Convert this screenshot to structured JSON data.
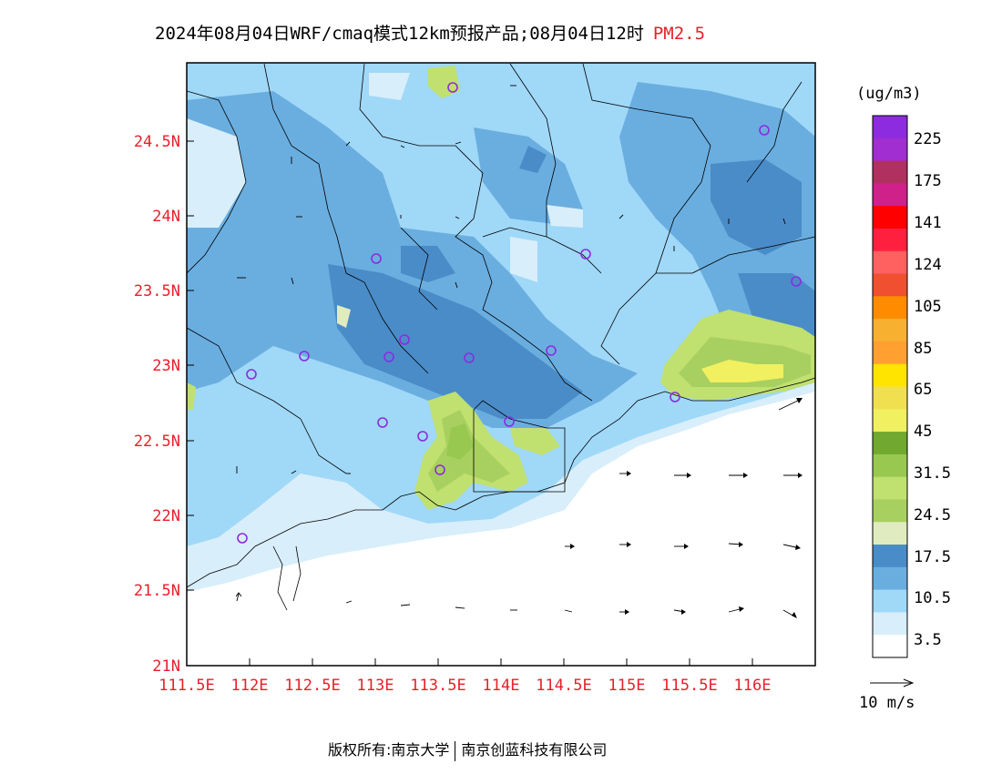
{
  "header": {
    "title_main": "2024年08月04日WRF/cmaq模式12km预报产品;08月04日12时",
    "title_pollutant": "PM2.5"
  },
  "map": {
    "x_ticks": [
      "111.5E",
      "112E",
      "112.5E",
      "113E",
      "113.5E",
      "114E",
      "114.5E",
      "115E",
      "115.5E",
      "116E"
    ],
    "y_ticks": [
      "24.5N",
      "24N",
      "23.5N",
      "23N",
      "22.5N",
      "22N",
      "21.5N",
      "21N"
    ],
    "lon_range": [
      111.5,
      116.5
    ],
    "lat_range": [
      21,
      25
    ],
    "tick_color": "#e8202a"
  },
  "legend": {
    "unit": "(ug/m3)",
    "labels": [
      "225",
      "175",
      "141",
      "124",
      "105",
      "85",
      "65",
      "45",
      "31.5",
      "24.5",
      "17.5",
      "10.5",
      "3.5"
    ],
    "colors_top_to_bottom": [
      "#8c2be0",
      "#a02ed0",
      "#b03060",
      "#d0208a",
      "#ff0000",
      "#ff2040",
      "#ff6060",
      "#f05030",
      "#ff8c00",
      "#f8b030",
      "#ffa030",
      "#ffe400",
      "#f0e050",
      "#f0f060",
      "#70a830",
      "#98c850",
      "#c0e070",
      "#a8d060",
      "#e0ecc0",
      "#4a8cc8",
      "#6aaee0",
      "#a0d8f8",
      "#d8eefa",
      "#ffffff"
    ]
  },
  "wind_scale": {
    "label": "10 m/s"
  },
  "footer": {
    "copyright": "版权所有:南京大学",
    "partner": "南京创蓝科技有限公司"
  }
}
